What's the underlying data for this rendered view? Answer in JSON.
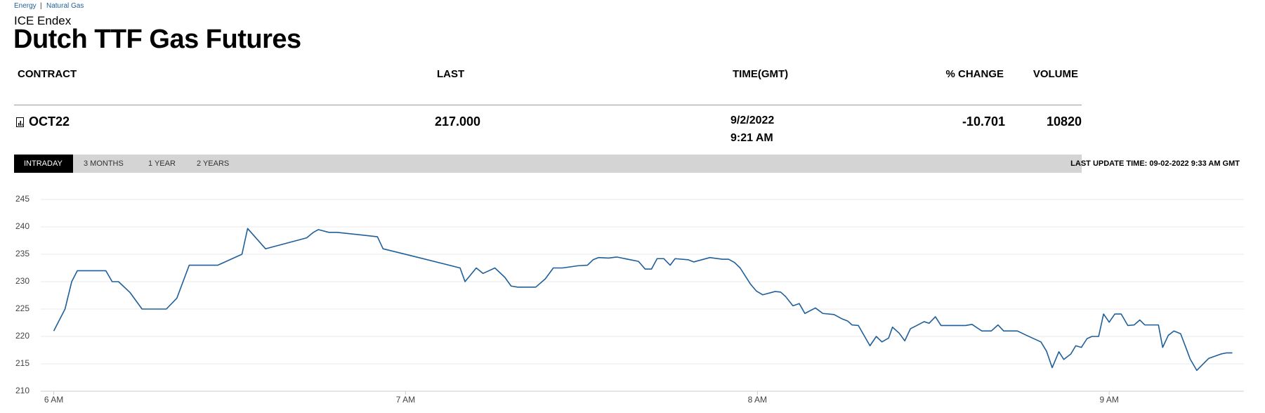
{
  "breadcrumb": [
    "Energy",
    "Natural Gas"
  ],
  "exchange": "ICE Endex",
  "title": "Dutch TTF Gas Futures",
  "table": {
    "columns": [
      "CONTRACT",
      "LAST",
      "TIME(GMT)",
      "% CHANGE",
      "VOLUME"
    ],
    "row": {
      "contract": "OCT22",
      "last": "217.000",
      "date": "9/2/2022",
      "time": "9:21 AM",
      "change": "-10.701",
      "volume": "10820"
    }
  },
  "tabs": [
    "INTRADAY",
    "3 MONTHS",
    "1 YEAR",
    "2 YEARS"
  ],
  "last_update": "LAST UPDATE TIME: 09-02-2022 9:33 AM GMT",
  "chart_data": {
    "type": "line",
    "x": [
      6.0,
      6.032,
      6.051,
      6.067,
      6.148,
      6.166,
      6.184,
      6.217,
      6.251,
      6.32,
      6.35,
      6.385,
      6.466,
      6.535,
      6.551,
      6.602,
      6.719,
      6.738,
      6.752,
      6.782,
      6.805,
      6.92,
      6.936,
      7.012,
      7.155,
      7.169,
      7.201,
      7.22,
      7.254,
      7.282,
      7.3,
      7.319,
      7.37,
      7.397,
      7.42,
      7.446,
      7.49,
      7.517,
      7.533,
      7.549,
      7.577,
      7.6,
      7.662,
      7.681,
      7.699,
      7.715,
      7.734,
      7.752,
      7.766,
      7.803,
      7.819,
      7.865,
      7.9,
      7.918,
      7.935,
      7.951,
      7.964,
      7.981,
      7.997,
      8.015,
      8.05,
      8.066,
      8.08,
      8.101,
      8.119,
      8.135,
      8.165,
      8.186,
      8.218,
      8.241,
      8.257,
      8.269,
      8.287,
      8.32,
      8.338,
      8.354,
      8.373,
      8.384,
      8.403,
      8.419,
      8.435,
      8.453,
      8.474,
      8.488,
      8.506,
      8.522,
      8.592,
      8.61,
      8.638,
      8.665,
      8.684,
      8.7,
      8.739,
      8.765,
      8.806,
      8.822,
      8.838,
      8.857,
      8.871,
      8.891,
      8.905,
      8.921,
      8.937,
      8.951,
      8.97,
      8.984,
      9.0,
      9.016,
      9.034,
      9.053,
      9.071,
      9.087,
      9.101,
      9.14,
      9.152,
      9.168,
      9.184,
      9.203,
      9.219,
      9.23,
      9.249,
      9.283,
      9.318,
      9.334,
      9.35
    ],
    "series": [
      {
        "color": "#1f5f99",
        "values": [
          221,
          225,
          230,
          232,
          232,
          230,
          230,
          228,
          225,
          225,
          227,
          233,
          233,
          235,
          239.7,
          236,
          238,
          239,
          239.5,
          239,
          239,
          238.2,
          236,
          234.8,
          232.5,
          230,
          232.5,
          231.5,
          232.5,
          230.8,
          229.2,
          229,
          229,
          230.5,
          232.5,
          232.5,
          232.9,
          233,
          234,
          234.4,
          234.3,
          234.5,
          233.7,
          232.3,
          232.3,
          234.2,
          234.2,
          233,
          234.2,
          234,
          233.6,
          234.4,
          234.1,
          234.1,
          233.5,
          232.5,
          231.2,
          229.5,
          228.3,
          227.6,
          228.2,
          228.1,
          227.3,
          225.6,
          226,
          224.2,
          225.2,
          224.2,
          224,
          223.2,
          222.8,
          222.1,
          222,
          218.3,
          220,
          219,
          219.7,
          221.7,
          220.6,
          219.2,
          221.4,
          222,
          222.7,
          222.4,
          223.6,
          222,
          222,
          222.2,
          221,
          221,
          222.1,
          221,
          221,
          220.2,
          219,
          217.3,
          214.3,
          217.2,
          215.8,
          216.8,
          218.3,
          218,
          219.6,
          220,
          220,
          224.1,
          222.6,
          224.1,
          224.1,
          222,
          222.1,
          223,
          222.1,
          222.1,
          218,
          220.2,
          221,
          220.5,
          217.8,
          215.9,
          213.8,
          216,
          216.8,
          217,
          217
        ]
      }
    ],
    "xlim": [
      5.963,
      9.383
    ],
    "ylim": [
      210,
      245
    ],
    "yticks": [
      210,
      215,
      220,
      225,
      230,
      235,
      240,
      245
    ],
    "xticks": [
      {
        "value": 6,
        "label": "6 AM"
      },
      {
        "value": 7,
        "label": "7 AM"
      },
      {
        "value": 8,
        "label": "8 AM"
      },
      {
        "value": 9,
        "label": "9 AM"
      }
    ],
    "grid": true
  }
}
